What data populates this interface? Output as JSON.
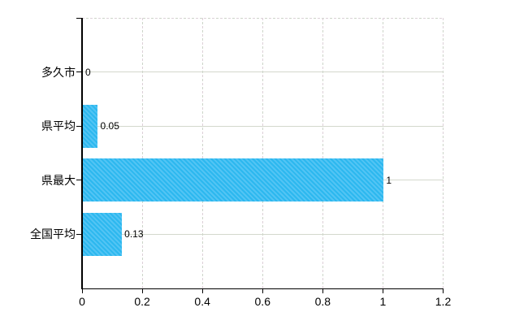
{
  "chart": {
    "background_color": "#ffffff",
    "axis_color": "#000000",
    "text_color": "#000000",
    "bar_color": "#3fbef2",
    "bar_color_dark": "#2cb8ef",
    "bar_color_light": "#52c4f4",
    "solid_gridline_color": "#d3d8cd",
    "dashed_gridline_color_a": "#ddd0d8",
    "dashed_gridline_color_b": "#ccd5c8"
  },
  "chart_data": {
    "type": "bar",
    "orientation": "horizontal",
    "title": "",
    "xlabel": "",
    "ylabel": "",
    "categories": [
      "多久市",
      "県平均",
      "県最大",
      "全国平均"
    ],
    "values": [
      0,
      0.05,
      1,
      0.13
    ],
    "value_labels": [
      "0",
      "0.05",
      "1",
      "0.13"
    ],
    "x_tick_values": [
      0,
      0.2,
      0.4,
      0.6,
      0.8,
      1,
      1.2
    ],
    "x_tick_labels": [
      "0",
      "0.2",
      "0.4",
      "0.6",
      "0.8",
      "1",
      "1.2"
    ],
    "xlim": [
      0,
      1.2
    ],
    "grid": true,
    "legend_position": "none"
  }
}
